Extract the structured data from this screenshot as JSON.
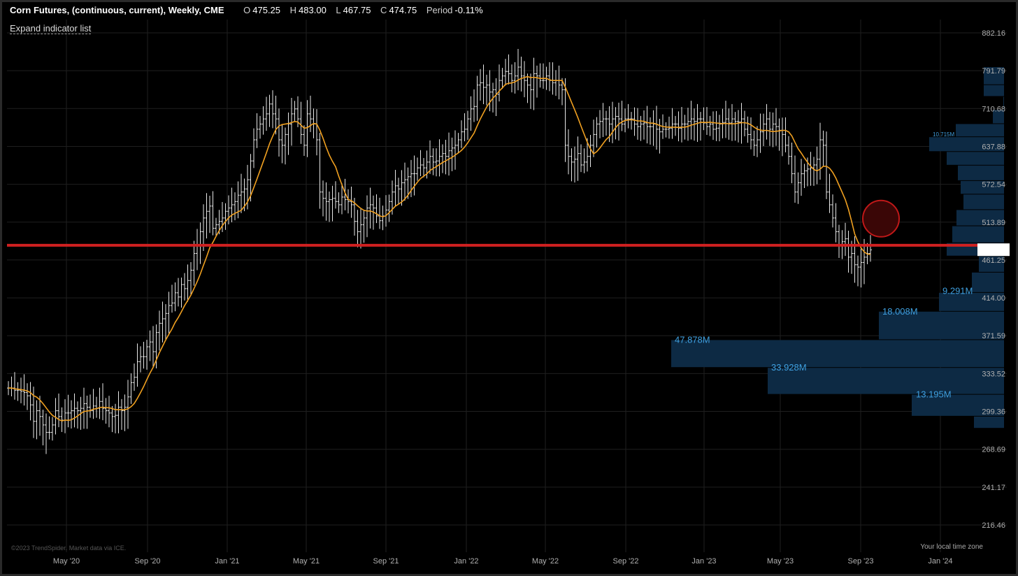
{
  "header": {
    "title": "Corn Futures, (continuous, current), Weekly, CME",
    "o_label": "O",
    "o_value": "475.25",
    "h_label": "H",
    "h_value": "483.00",
    "l_label": "L",
    "l_value": "467.75",
    "c_label": "C",
    "c_value": "474.75",
    "period_label": "Period",
    "period_value": "-0.11%"
  },
  "expand_label": "Expand indicator list",
  "credit": "©2023 TrendSpider. Market data via ICE.",
  "timezone_label": "Your local time zone",
  "colors": {
    "background": "#000000",
    "grid": "#1f1f1f",
    "bars": "#e8e8e8",
    "moving_average": "#f0a020",
    "support_line": "#d02020",
    "volume_profile": "#0d2a44",
    "volume_label": "#3fa0e0",
    "marker_circle": "#c01818"
  },
  "chart_data": {
    "type": "ohlc",
    "title": "Corn Futures, (continuous, current), Weekly, CME",
    "scale": "log",
    "x_tick_labels": [
      "May '20",
      "Sep '20",
      "Jan '21",
      "May '21",
      "Sep '21",
      "Jan '22",
      "May '22",
      "Sep '22",
      "Jan '23",
      "May '23",
      "Sep '23",
      "Jan '24"
    ],
    "y_tick_labels": [
      "882.16",
      "791.79",
      "710.68",
      "637.88",
      "572.54",
      "513.89",
      "461.25",
      "414.00",
      "371.59",
      "333.52",
      "299.36",
      "268.69",
      "241.17",
      "216.46"
    ],
    "ylim": [
      200,
      920
    ],
    "grid": true,
    "weekly_closes": [
      320,
      320,
      318,
      318,
      317,
      316,
      313,
      305,
      291,
      300,
      295,
      288,
      282,
      282,
      288,
      300,
      295,
      292,
      298,
      298,
      300,
      302,
      300,
      302,
      306,
      303,
      300,
      304,
      302,
      308,
      302,
      300,
      298,
      295,
      296,
      303,
      300,
      303,
      312,
      325,
      330,
      345,
      350,
      350,
      360,
      365,
      355,
      375,
      385,
      390,
      396,
      405,
      408,
      420,
      415,
      430,
      425,
      435,
      448,
      470,
      480,
      500,
      520,
      530,
      538,
      505,
      510,
      515,
      520,
      530,
      535,
      540,
      545,
      555,
      560,
      565,
      580,
      612,
      650,
      670,
      680,
      690,
      700,
      720,
      700,
      690,
      650,
      640,
      660,
      680,
      700,
      710,
      690,
      660,
      640,
      700,
      690,
      680,
      650,
      560,
      550,
      545,
      548,
      550,
      545,
      540,
      552,
      548,
      545,
      540,
      515,
      500,
      510,
      520,
      535,
      540,
      535,
      523,
      516,
      523,
      532,
      545,
      560,
      570,
      565,
      575,
      580,
      585,
      590,
      590,
      600,
      605,
      600,
      610,
      620,
      610,
      612,
      620,
      625,
      620,
      630,
      635,
      640,
      650,
      665,
      670,
      690,
      710,
      715,
      760,
      765,
      755,
      760,
      745,
      750,
      740,
      770,
      780,
      790,
      785,
      770,
      780,
      800,
      780,
      770,
      760,
      750,
      785,
      780,
      770,
      770,
      780,
      770,
      765,
      770,
      760,
      750,
      640,
      620,
      610,
      615,
      625,
      605,
      610,
      620,
      640,
      660,
      680,
      685,
      690,
      690,
      680,
      690,
      695,
      690,
      680,
      690,
      690,
      690,
      680,
      675,
      680,
      682,
      675,
      675,
      680,
      670,
      665,
      670,
      670,
      672,
      680,
      680,
      672,
      680,
      680,
      685,
      690,
      685,
      690,
      690,
      682,
      675,
      680,
      670,
      672,
      680,
      683,
      690,
      682,
      690,
      685,
      684,
      690,
      670,
      660,
      650,
      640,
      650,
      665,
      680,
      690,
      670,
      680,
      675,
      668,
      660,
      640,
      620,
      590,
      560,
      575,
      590,
      595,
      598,
      600,
      605,
      615,
      650,
      640,
      560,
      540,
      520,
      500,
      480,
      486,
      490,
      465,
      470,
      455,
      452,
      458,
      465,
      470,
      474.75
    ],
    "moving_average": {
      "name": "",
      "color": "#f0a020"
    },
    "support_level": 481,
    "marker": {
      "label": "",
      "price": 519,
      "time_note": "early Oct '23"
    },
    "volume_profile": {
      "labels": [
        "10.715M",
        "9.291M",
        "18.008M",
        "47.878M",
        "33.928M",
        "13.195M"
      ],
      "label_prices": [
        662,
        422,
        398,
        367,
        339,
        314
      ]
    },
    "last_price_marker": 475
  }
}
